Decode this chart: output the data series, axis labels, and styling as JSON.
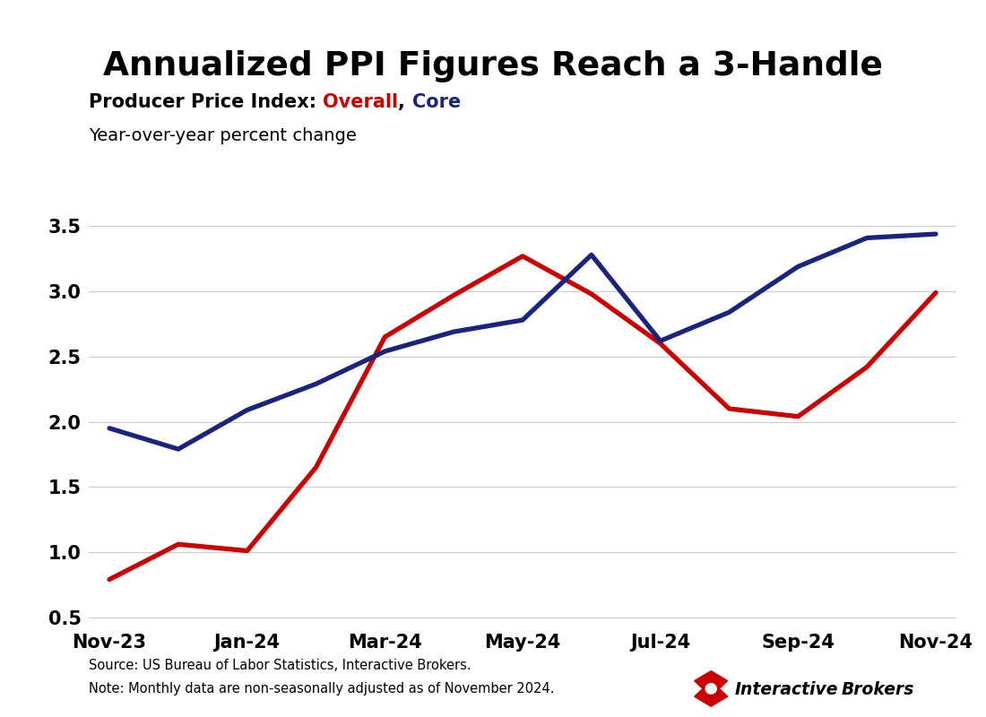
{
  "title": "Annualized PPI Figures Reach a 3-Handle",
  "subtitle_line1": "Producer Price Index: ",
  "subtitle_overall": "Overall",
  "subtitle_comma": ", ",
  "subtitle_core": "Core",
  "subtitle_line2": "Year-over-year percent change",
  "x_labels": [
    "Nov-23",
    "Jan-24",
    "Mar-24",
    "May-24",
    "Jul-24",
    "Sep-24",
    "Nov-24"
  ],
  "x_indices": [
    0,
    2,
    4,
    6,
    8,
    10,
    12
  ],
  "overall_data": [
    0.79,
    1.06,
    1.01,
    1.65,
    2.65,
    2.97,
    3.27,
    2.98,
    2.6,
    2.1,
    2.04,
    2.42,
    2.99
  ],
  "core_data": [
    1.95,
    1.79,
    2.09,
    2.29,
    2.54,
    2.69,
    2.78,
    3.28,
    2.62,
    2.84,
    3.19,
    3.41,
    3.44
  ],
  "overall_color": "#cc0000",
  "core_color": "#1a237e",
  "ylim": [
    0.45,
    3.75
  ],
  "yticks": [
    0.5,
    1.0,
    1.5,
    2.0,
    2.5,
    3.0,
    3.5
  ],
  "source_text": "Source: US Bureau of Labor Statistics, Interactive Brokers.",
  "note_text": "Note: Monthly data are non-seasonally adjusted as of November 2024.",
  "background_color": "#ffffff",
  "line_width": 3.8
}
